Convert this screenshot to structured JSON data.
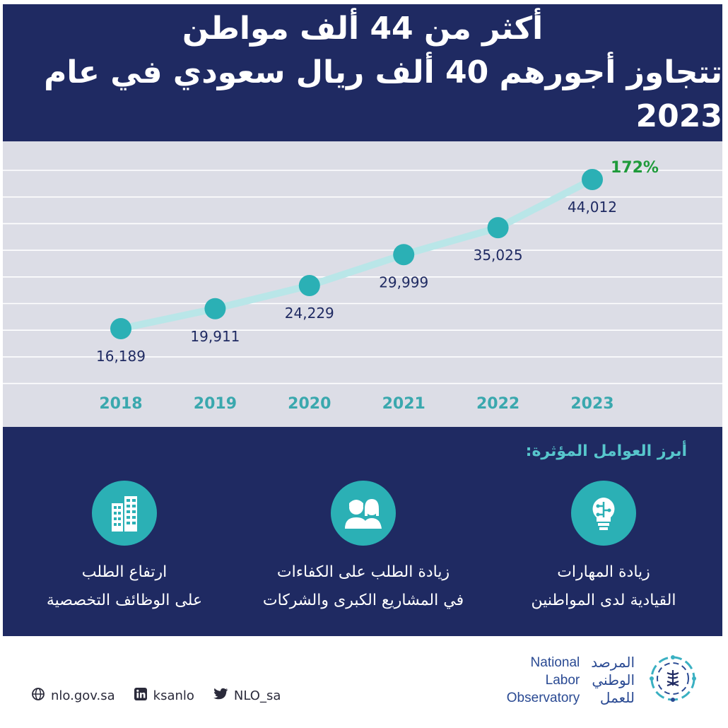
{
  "header": {
    "line1": "أكثر من 44 ألف مواطن",
    "line2": "تتجاوز أجورهم 40 ألف ريال سعودي في عام 2023"
  },
  "chart_data": {
    "type": "line",
    "categories": [
      "2018",
      "2019",
      "2020",
      "2021",
      "2022",
      "2023"
    ],
    "series": [
      {
        "values": [
          16189,
          19911,
          24229,
          29999,
          35025,
          44012
        ]
      }
    ],
    "value_labels": [
      "16,189",
      "19,911",
      "24,229",
      "29,999",
      "35,025",
      "44,012"
    ],
    "annotation": "172%",
    "title": "",
    "xlabel": "",
    "ylabel": "",
    "grid": true,
    "colors": {
      "line": "#b9e6e8",
      "marker": "#2bb0b5",
      "axis_label": "#3aa8ae",
      "annotation": "#1e9a3a",
      "value_label": "#1f2a62"
    }
  },
  "factors": {
    "heading": "أبرز العوامل المؤثرة:",
    "items": [
      {
        "icon": "lightbulb-circuit-icon",
        "line1": "زيادة المهارات",
        "line2": "القيادية لدى المواطنين"
      },
      {
        "icon": "people-icon",
        "line1": "زيادة الطلب على الكفاءات",
        "line2": "في المشاريع الكبرى والشركات"
      },
      {
        "icon": "buildings-icon",
        "line1": "ارتفاع الطلب",
        "line2": "على الوظائف التخصصية"
      }
    ]
  },
  "footer": {
    "website": "nlo.gov.sa",
    "linkedin": "ksanlo",
    "twitter": "NLO_sa",
    "logo_en": [
      "National",
      "Labor",
      "Observatory"
    ],
    "logo_ar": [
      "المرصد",
      "الوطني",
      "للعمل"
    ]
  }
}
